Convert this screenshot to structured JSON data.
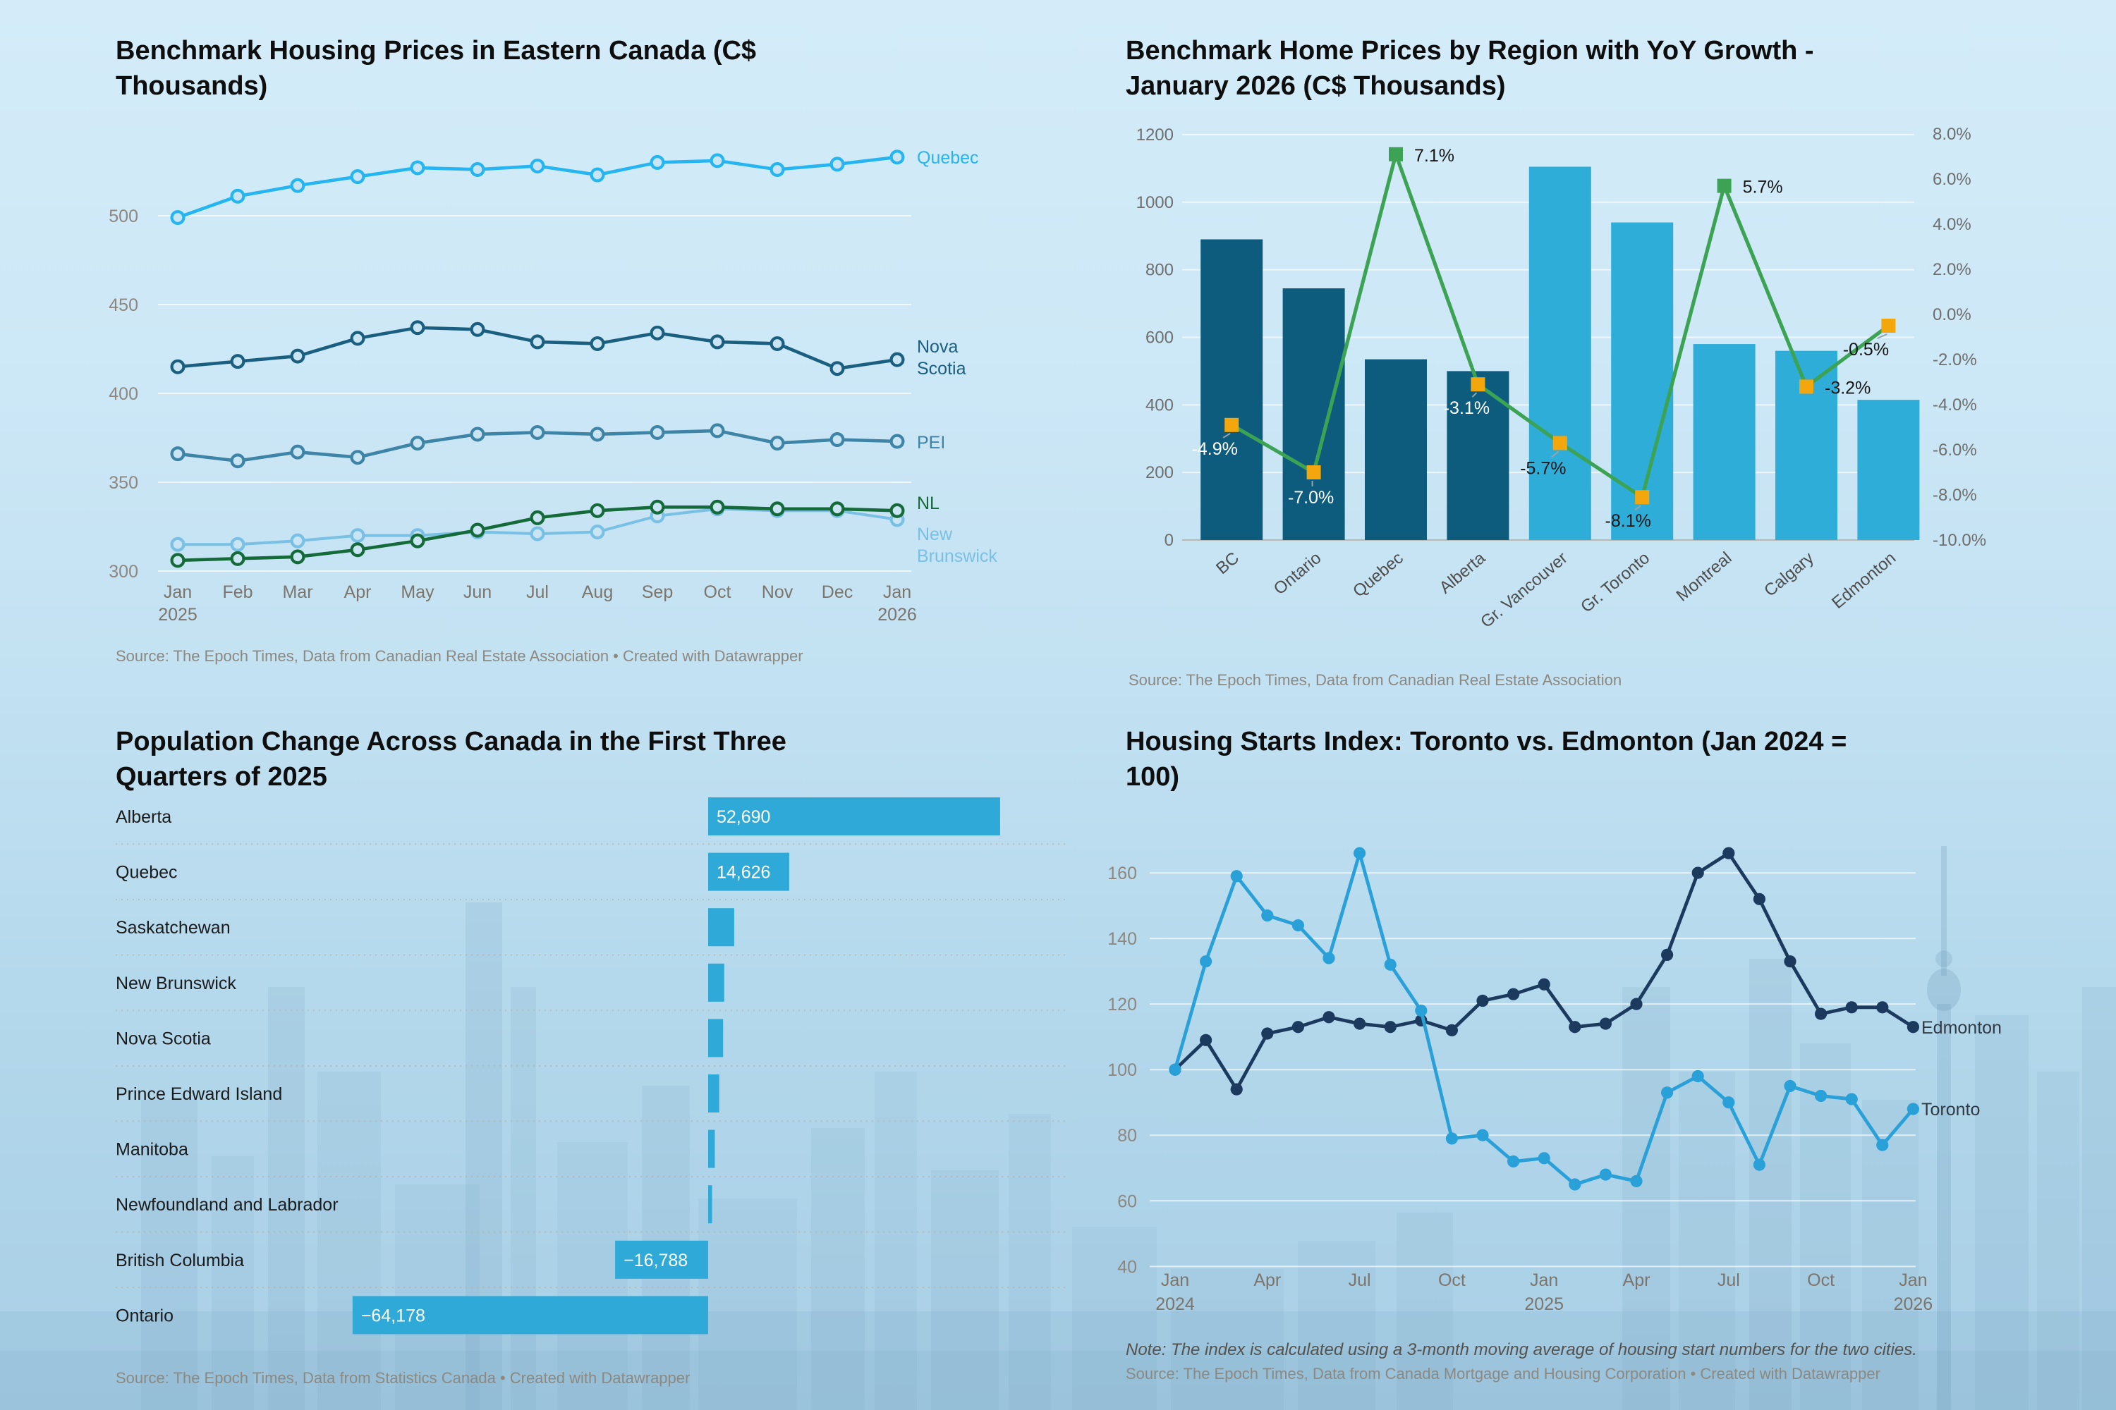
{
  "accent_colors": {
    "dark_teal": "#0d5c7d",
    "light_blue": "#2fadd9",
    "green_line": "#3ca355",
    "marker_yellow": "#f4a70d",
    "sky_background": "#c6e4f4"
  },
  "chart_data": [
    {
      "id": "benchmark-housing-prices-eastern-canada",
      "type": "line",
      "title": "Benchmark Housing Prices in Eastern Canada (C$ Thousands)",
      "title_lines": [
        "Benchmark Housing Prices in Eastern Canada (C$",
        "Thousands)"
      ],
      "source": "Source: The Epoch Times, Data from Canadian Real Estate Association • Created with Datawrapper",
      "yticks": [
        500,
        450,
        400,
        350,
        300
      ],
      "x_ticks": [
        {
          "i": 0,
          "label": "Jan",
          "sub": "2025"
        },
        {
          "i": 1,
          "label": "Feb"
        },
        {
          "i": 2,
          "label": "Mar"
        },
        {
          "i": 3,
          "label": "Apr"
        },
        {
          "i": 4,
          "label": "May"
        },
        {
          "i": 5,
          "label": "Jun"
        },
        {
          "i": 6,
          "label": "Jul"
        },
        {
          "i": 7,
          "label": "Aug"
        },
        {
          "i": 8,
          "label": "Sep"
        },
        {
          "i": 9,
          "label": "Oct"
        },
        {
          "i": 10,
          "label": "Nov"
        },
        {
          "i": 11,
          "label": "Dec"
        },
        {
          "i": 12,
          "label": "Jan",
          "sub": "2026"
        }
      ],
      "series": [
        {
          "name": "Quebec",
          "color": "#25b5f0",
          "width": 2.3,
          "label_lines": [
            "Quebec"
          ],
          "label_y": 116,
          "values": [
            499,
            511,
            517,
            522,
            527,
            526,
            528,
            523,
            530,
            531,
            526,
            529,
            533
          ]
        },
        {
          "name": "Nova Scotia",
          "color": "#1a5f80",
          "width": 2.3,
          "label_lines": [
            "Nova",
            "Scotia"
          ],
          "label_y": 250,
          "values": [
            415,
            418,
            421,
            431,
            437,
            436,
            429,
            428,
            434,
            429,
            428,
            414,
            419
          ]
        },
        {
          "name": "PEI",
          "color": "#3e84a7",
          "width": 2.3,
          "label_lines": [
            "PEI"
          ],
          "label_y": 318,
          "values": [
            366,
            362,
            367,
            364,
            372,
            377,
            378,
            377,
            378,
            379,
            372,
            374,
            373
          ]
        },
        {
          "name": "New Brunswick",
          "color": "#79c0e4",
          "width": 2.0,
          "label_lines": [
            "New",
            "Brunswick"
          ],
          "label_y": 383,
          "values": [
            315,
            315,
            317,
            320,
            320,
            322,
            321,
            322,
            331,
            335,
            334,
            334,
            329
          ]
        },
        {
          "name": "NL",
          "color": "#156a39",
          "width": 2.3,
          "label_lines": [
            "NL"
          ],
          "label_y": 361,
          "values": [
            306,
            307,
            308,
            312,
            317,
            323,
            330,
            334,
            336,
            336,
            335,
            335,
            334
          ]
        }
      ]
    },
    {
      "id": "benchmark-home-prices-yoy-january-2026",
      "type": "bar-line-combo",
      "title": "Benchmark Home Prices by Region with YoY Growth - January 2026 (C$ Thousands)",
      "title_lines": [
        "Benchmark Home Prices by Region with YoY Growth -",
        "January 2026 (C$ Thousands)"
      ],
      "source": "Source: The Epoch Times, Data from Canadian Real Estate Association",
      "categories": [
        "BC",
        "Ontario",
        "Quebec",
        "Alberta",
        "Gr. Vancouver",
        "Gr. Toronto",
        "Montreal",
        "Calgary",
        "Edmonton"
      ],
      "bar_values": [
        890,
        745,
        535,
        500,
        1105,
        940,
        580,
        560,
        415
      ],
      "bar_colors": [
        "#0d5c7d",
        "#0d5c7d",
        "#0d5c7d",
        "#0d5c7d",
        "#2fadd9",
        "#2fadd9",
        "#2fadd9",
        "#2fadd9",
        "#2fadd9"
      ],
      "yoy_values": [
        -4.9,
        -7.0,
        7.1,
        -3.1,
        -5.7,
        -8.1,
        5.7,
        -3.2,
        -0.5
      ],
      "yoy_labels": [
        "-4.9%",
        "-7.0%",
        "7.1%",
        "-3.1%",
        "-5.7%",
        "-8.1%",
        "5.7%",
        "-3.2%",
        "-0.5%"
      ],
      "marker_colors": [
        "#f4a70d",
        "#f4a70d",
        "#3ca355",
        "#f4a70d",
        "#f4a70d",
        "#f4a70d",
        "#3ca355",
        "#f4a70d",
        "#f4a70d"
      ],
      "line_color": "#3ca355",
      "left_ticks": [
        1200,
        1000,
        800,
        600,
        400,
        200,
        0
      ],
      "right_ticks": [
        {
          "p": 8,
          "label": "8.0%"
        },
        {
          "p": 6,
          "label": "6.0%"
        },
        {
          "p": 4,
          "label": "4.0%"
        },
        {
          "p": 2,
          "label": "2.0%"
        },
        {
          "p": 0,
          "label": "0.0%"
        },
        {
          "p": -2,
          "label": "-2.0%"
        },
        {
          "p": -4,
          "label": "-4.0%"
        },
        {
          "p": -6,
          "label": "-6.0%"
        },
        {
          "p": -8,
          "label": "-8.0%"
        },
        {
          "p": -10,
          "label": "-10.0%"
        }
      ]
    },
    {
      "id": "population-change-canada-2025",
      "type": "bar-horizontal",
      "title": "Population Change Across Canada in the First Three Quarters of 2025",
      "title_lines": [
        "Population Change Across Canada in the First Three",
        "Quarters of 2025"
      ],
      "source": "Source: The Epoch Times, Data from Statistics Canada • Created with Datawrapper",
      "bar_color": "#2fa9d7",
      "rows": [
        {
          "label": "Alberta",
          "value": 52690,
          "value_label": "52,690"
        },
        {
          "label": "Quebec",
          "value": 14626,
          "value_label": "14,626"
        },
        {
          "label": "Saskatchewan",
          "value": 4700,
          "value_label": null
        },
        {
          "label": "New Brunswick",
          "value": 2900,
          "value_label": null
        },
        {
          "label": "Nova Scotia",
          "value": 2700,
          "value_label": null
        },
        {
          "label": "Prince Edward Island",
          "value": 2000,
          "value_label": null
        },
        {
          "label": "Manitoba",
          "value": 1200,
          "value_label": null
        },
        {
          "label": "Newfoundland and Labrador",
          "value": 700,
          "value_label": null
        },
        {
          "label": "British Columbia",
          "value": -16788,
          "value_label": "−16,788"
        },
        {
          "label": "Ontario",
          "value": -64178,
          "value_label": "−64,178"
        }
      ]
    },
    {
      "id": "housing-starts-index-toronto-edmonton",
      "type": "line",
      "title": "Housing Starts Index: Toronto vs. Edmonton (Jan 2024 = 100)",
      "title_lines": [
        "Housing Starts Index: Toronto vs. Edmonton (Jan 2024 =",
        "100)"
      ],
      "note": "Note: The index is calculated using a 3-month moving average of housing start numbers for the two cities.",
      "source": "Source: The Epoch Times, Data from Canada Mortgage and Housing Corporation • Created with Datawrapper",
      "yticks": [
        160,
        140,
        120,
        100,
        80,
        60,
        40
      ],
      "x_ticks": [
        {
          "i": 0,
          "label": "Jan",
          "sub": "2024"
        },
        {
          "i": 3,
          "label": "Apr"
        },
        {
          "i": 6,
          "label": "Jul"
        },
        {
          "i": 9,
          "label": "Oct"
        },
        {
          "i": 12,
          "label": "Jan",
          "sub": "2025"
        },
        {
          "i": 15,
          "label": "Apr"
        },
        {
          "i": 18,
          "label": "Jul"
        },
        {
          "i": 21,
          "label": "Oct"
        },
        {
          "i": 24,
          "label": "Jan",
          "sub": "2026"
        }
      ],
      "label_color": "#323b44",
      "series": [
        {
          "name": "Edmonton",
          "color": "#1c3a5e",
          "label_y": 733,
          "values": [
            100,
            109,
            94,
            111,
            113,
            116,
            114,
            113,
            115,
            112,
            121,
            123,
            126,
            113,
            114,
            120,
            135,
            160,
            166,
            152,
            133,
            117,
            119,
            119,
            113
          ]
        },
        {
          "name": "Toronto",
          "color": "#2aa0d8",
          "label_y": 791,
          "values": [
            100,
            133,
            159,
            147,
            144,
            134,
            166,
            132,
            118,
            79,
            80,
            72,
            73,
            65,
            68,
            66,
            93,
            98,
            90,
            71,
            95,
            92,
            91,
            77,
            88
          ]
        }
      ]
    }
  ]
}
